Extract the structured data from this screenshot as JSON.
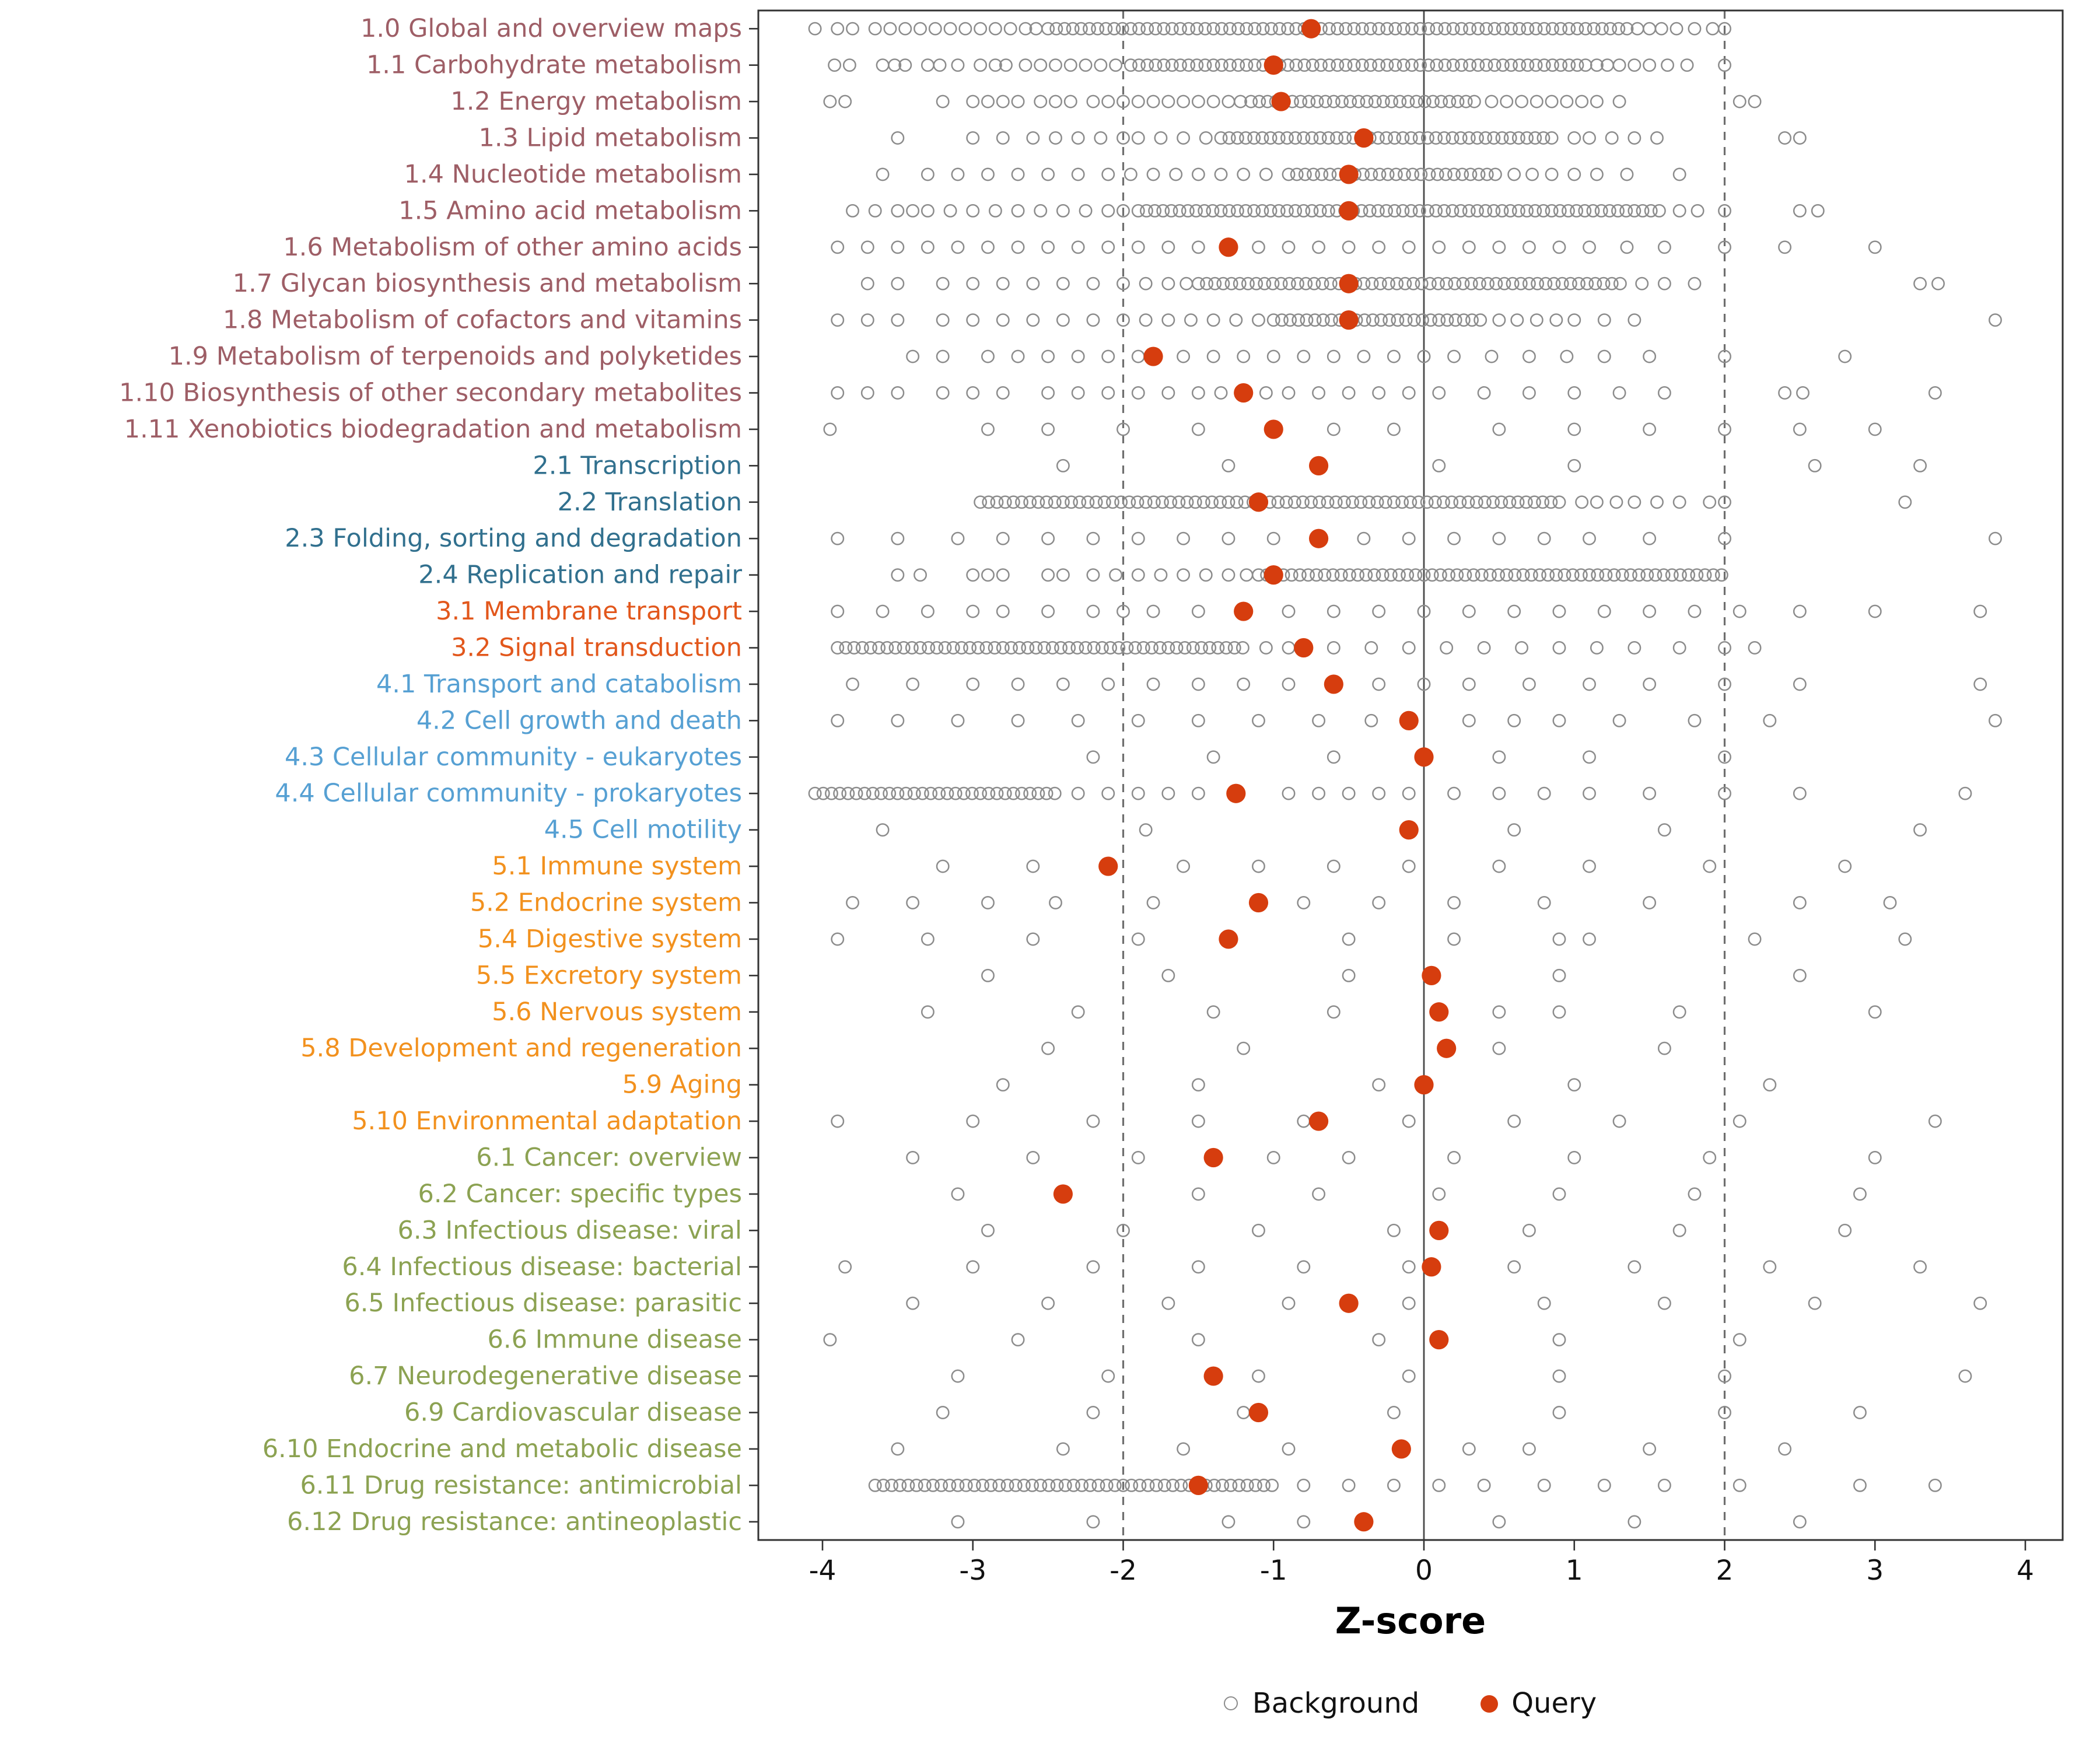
{
  "chart_data": {
    "type": "scatter",
    "title": "",
    "xlabel": "Z-score",
    "ylabel": "",
    "x_ticks": [
      -4,
      -3,
      -2,
      -1,
      0,
      1,
      2,
      3,
      4
    ],
    "xlim": [
      -4.4,
      4.25
    ],
    "grid": false,
    "legend_position": "bottom",
    "reference_lines": {
      "solid": [
        0
      ],
      "dashed": [
        -2,
        2
      ]
    },
    "legend": {
      "background_label": "Background",
      "query_label": "Query"
    },
    "colors": {
      "background_stroke": "#8c8c8c",
      "query_fill": "#d63d0e",
      "axis_text": "#111111",
      "panel_border": "#333333",
      "group_colors": {
        "1": "#9E5E66",
        "2": "#31708E",
        "3": "#E2571C",
        "4": "#56A0D3",
        "5": "#F2911E",
        "6": "#8CA252"
      }
    },
    "rows": [
      {
        "label": "1.0 Global and overview maps",
        "group": "1",
        "query": -0.75,
        "band": [
          -2.5,
          1.35
        ],
        "background": [
          -4.05,
          -3.9,
          -3.8,
          -3.65,
          -3.55,
          -3.45,
          -3.35,
          -3.25,
          -3.15,
          -3.05,
          -2.95,
          -2.85,
          -2.75,
          -2.65,
          -2.58,
          1.42,
          1.5,
          1.58,
          1.68,
          1.8,
          1.92,
          2.0
        ]
      },
      {
        "label": "1.1 Carbohydrate metabolism",
        "group": "1",
        "query": -1.0,
        "band": [
          -1.95,
          1.08
        ],
        "background": [
          -3.92,
          -3.82,
          -3.6,
          -3.52,
          -3.45,
          -3.3,
          -3.22,
          -3.1,
          -2.95,
          -2.85,
          -2.78,
          -2.65,
          -2.55,
          -2.45,
          -2.35,
          -2.25,
          -2.15,
          -2.05,
          1.15,
          1.22,
          1.3,
          1.4,
          1.5,
          1.62,
          1.75,
          2.0
        ]
      },
      {
        "label": "1.2 Energy metabolism",
        "group": "1",
        "query": -0.95,
        "band": [
          -1.15,
          0.35
        ],
        "background": [
          -3.95,
          -3.85,
          -3.2,
          -3.0,
          -2.9,
          -2.8,
          -2.7,
          -2.55,
          -2.45,
          -2.35,
          -2.2,
          -2.1,
          -2.0,
          -1.9,
          -1.8,
          -1.7,
          -1.6,
          -1.5,
          -1.4,
          -1.3,
          -1.22,
          0.45,
          0.55,
          0.65,
          0.75,
          0.85,
          0.95,
          1.05,
          1.15,
          1.3,
          2.1,
          2.2
        ]
      },
      {
        "label": "1.3 Lipid metabolism",
        "group": "1",
        "query": -0.4,
        "band": [
          -1.35,
          0.9
        ],
        "background": [
          -3.5,
          -3.0,
          -2.8,
          -2.6,
          -2.45,
          -2.3,
          -2.15,
          -2.0,
          -1.9,
          -1.75,
          -1.6,
          -1.45,
          1.0,
          1.1,
          1.25,
          1.4,
          1.55,
          2.4,
          2.5
        ]
      },
      {
        "label": "1.4 Nucleotide metabolism",
        "group": "1",
        "query": -0.5,
        "band": [
          -0.9,
          0.5
        ],
        "background": [
          -3.6,
          -3.3,
          -3.1,
          -2.9,
          -2.7,
          -2.5,
          -2.3,
          -2.1,
          -1.95,
          -1.8,
          -1.65,
          -1.5,
          -1.35,
          -1.2,
          -1.05,
          0.6,
          0.72,
          0.85,
          1.0,
          1.15,
          1.35,
          1.7
        ]
      },
      {
        "label": "1.5 Amino acid metabolism",
        "group": "1",
        "query": -0.5,
        "band": [
          -1.9,
          1.6
        ],
        "background": [
          -3.8,
          -3.65,
          -3.5,
          -3.4,
          -3.3,
          -3.15,
          -3.0,
          -2.85,
          -2.7,
          -2.55,
          -2.4,
          -2.25,
          -2.1,
          -2.0,
          1.7,
          1.82,
          2.0,
          2.5,
          2.62
        ]
      },
      {
        "label": "1.6 Metabolism of other amino acids",
        "group": "1",
        "query": -1.3,
        "band": null,
        "background": [
          -3.9,
          -3.7,
          -3.5,
          -3.3,
          -3.1,
          -2.9,
          -2.7,
          -2.5,
          -2.3,
          -2.1,
          -1.9,
          -1.7,
          -1.5,
          -1.1,
          -0.9,
          -0.7,
          -0.5,
          -0.3,
          -0.1,
          0.1,
          0.3,
          0.5,
          0.7,
          0.9,
          1.1,
          1.35,
          1.6,
          2.0,
          2.4,
          3.0
        ]
      },
      {
        "label": "1.7 Glycan biosynthesis and metabolism",
        "group": "1",
        "query": -0.5,
        "band": [
          -1.5,
          1.35
        ],
        "background": [
          -3.7,
          -3.5,
          -3.2,
          -3.0,
          -2.8,
          -2.6,
          -2.4,
          -2.2,
          -2.0,
          -1.85,
          -1.7,
          -1.58,
          1.45,
          1.6,
          1.8,
          3.3,
          3.42
        ]
      },
      {
        "label": "1.8 Metabolism of cofactors and vitamins",
        "group": "1",
        "query": -0.5,
        "band": [
          -1.0,
          0.4
        ],
        "background": [
          -3.9,
          -3.7,
          -3.5,
          -3.2,
          -3.0,
          -2.8,
          -2.6,
          -2.4,
          -2.2,
          -2.0,
          -1.85,
          -1.7,
          -1.55,
          -1.4,
          -1.25,
          -1.1,
          0.5,
          0.62,
          0.75,
          0.88,
          1.0,
          1.2,
          1.4,
          3.8
        ]
      },
      {
        "label": "1.9 Metabolism of terpenoids and polyketides",
        "group": "1",
        "query": -1.8,
        "band": null,
        "background": [
          -3.4,
          -3.2,
          -2.9,
          -2.7,
          -2.5,
          -2.3,
          -2.1,
          -1.9,
          -1.6,
          -1.4,
          -1.2,
          -1.0,
          -0.8,
          -0.6,
          -0.4,
          -0.2,
          0.0,
          0.2,
          0.45,
          0.7,
          0.95,
          1.2,
          1.5,
          2.0,
          2.8
        ]
      },
      {
        "label": "1.10 Biosynthesis of other secondary metabolites",
        "group": "1",
        "query": -1.2,
        "band": null,
        "background": [
          -3.9,
          -3.7,
          -3.5,
          -3.2,
          -3.0,
          -2.8,
          -2.5,
          -2.3,
          -2.1,
          -1.9,
          -1.7,
          -1.5,
          -1.35,
          -1.05,
          -0.9,
          -0.7,
          -0.5,
          -0.3,
          -0.1,
          0.1,
          0.4,
          0.7,
          1.0,
          1.3,
          1.6,
          2.4,
          2.52,
          3.4
        ]
      },
      {
        "label": "1.11 Xenobiotics biodegradation and metabolism",
        "group": "1",
        "query": -1.0,
        "band": null,
        "background": [
          -3.95,
          -2.9,
          -2.5,
          -2.0,
          -1.5,
          -0.6,
          -0.2,
          0.5,
          1.0,
          1.5,
          2.0,
          2.5,
          3.0
        ]
      },
      {
        "label": "2.1 Transcription",
        "group": "2",
        "query": -0.7,
        "band": null,
        "background": [
          -2.4,
          -1.3,
          0.1,
          1.0,
          2.6,
          3.3
        ]
      },
      {
        "label": "2.2 Translation",
        "group": "2",
        "query": -1.1,
        "band": [
          -2.95,
          0.9
        ],
        "background": [
          1.05,
          1.15,
          1.28,
          1.4,
          1.55,
          1.7,
          1.9,
          2.0,
          3.2
        ]
      },
      {
        "label": "2.3 Folding, sorting and degradation",
        "group": "2",
        "query": -0.7,
        "band": null,
        "background": [
          -3.9,
          -3.5,
          -3.1,
          -2.8,
          -2.5,
          -2.2,
          -1.9,
          -1.6,
          -1.3,
          -1.0,
          -0.4,
          -0.1,
          0.2,
          0.5,
          0.8,
          1.1,
          1.5,
          2.0,
          3.8
        ]
      },
      {
        "label": "2.4 Replication and repair",
        "group": "2",
        "query": -1.0,
        "band": [
          -1.1,
          2.0
        ],
        "background": [
          -3.5,
          -3.35,
          -3.0,
          -2.9,
          -2.8,
          -2.5,
          -2.4,
          -2.2,
          -2.05,
          -1.9,
          -1.75,
          -1.6,
          -1.45,
          -1.3,
          -1.18
        ]
      },
      {
        "label": "3.1 Membrane transport",
        "group": "3",
        "query": -1.2,
        "band": null,
        "background": [
          -3.9,
          -3.6,
          -3.3,
          -3.0,
          -2.8,
          -2.5,
          -2.2,
          -2.0,
          -1.8,
          -1.5,
          -0.9,
          -0.6,
          -0.3,
          0.0,
          0.3,
          0.6,
          0.9,
          1.2,
          1.5,
          1.8,
          2.1,
          2.5,
          3.0,
          3.7
        ]
      },
      {
        "label": "3.2 Signal transduction",
        "group": "3",
        "query": -0.8,
        "band": [
          -3.9,
          -1.2
        ],
        "background": [
          -1.05,
          -0.9,
          -0.6,
          -0.35,
          -0.1,
          0.15,
          0.4,
          0.65,
          0.9,
          1.15,
          1.4,
          1.7,
          2.0,
          2.2
        ]
      },
      {
        "label": "4.1 Transport and catabolism",
        "group": "4",
        "query": -0.6,
        "band": null,
        "background": [
          -3.8,
          -3.4,
          -3.0,
          -2.7,
          -2.4,
          -2.1,
          -1.8,
          -1.5,
          -1.2,
          -0.9,
          -0.3,
          0.0,
          0.3,
          0.7,
          1.1,
          1.5,
          2.0,
          2.5,
          3.7
        ]
      },
      {
        "label": "4.2 Cell growth and death",
        "group": "4",
        "query": -0.1,
        "band": null,
        "background": [
          -3.9,
          -3.5,
          -3.1,
          -2.7,
          -2.3,
          -1.9,
          -1.5,
          -1.1,
          -0.7,
          -0.35,
          0.3,
          0.6,
          0.9,
          1.3,
          1.8,
          2.3,
          3.8
        ]
      },
      {
        "label": "4.3 Cellular community - eukaryotes",
        "group": "4",
        "query": 0.0,
        "band": null,
        "background": [
          -2.2,
          -1.4,
          -0.6,
          0.5,
          1.1,
          2.0
        ]
      },
      {
        "label": "4.4 Cellular community - prokaryotes",
        "group": "4",
        "query": -1.25,
        "band": [
          -4.05,
          -2.45
        ],
        "background": [
          -2.3,
          -2.1,
          -1.9,
          -1.7,
          -1.5,
          -0.9,
          -0.7,
          -0.5,
          -0.3,
          -0.1,
          0.2,
          0.5,
          0.8,
          1.1,
          1.5,
          2.0,
          2.5,
          3.6
        ]
      },
      {
        "label": "4.5 Cell motility",
        "group": "4",
        "query": -0.1,
        "band": null,
        "background": [
          -3.6,
          -1.85,
          0.6,
          1.6,
          3.3
        ]
      },
      {
        "label": "5.1 Immune system",
        "group": "5",
        "query": -2.1,
        "band": null,
        "background": [
          -3.2,
          -2.6,
          -1.6,
          -1.1,
          -0.6,
          -0.1,
          0.5,
          1.1,
          1.9,
          2.8
        ]
      },
      {
        "label": "5.2 Endocrine system",
        "group": "5",
        "query": -1.1,
        "band": null,
        "background": [
          -3.8,
          -3.4,
          -2.9,
          -2.45,
          -1.8,
          -0.8,
          -0.3,
          0.2,
          0.8,
          1.5,
          2.5,
          3.1
        ]
      },
      {
        "label": "5.4 Digestive system",
        "group": "5",
        "query": -1.3,
        "band": null,
        "background": [
          -3.9,
          -3.3,
          -2.6,
          -1.9,
          -0.5,
          0.2,
          0.9,
          1.1,
          2.2,
          3.2
        ]
      },
      {
        "label": "5.5 Excretory system",
        "group": "5",
        "query": 0.05,
        "band": null,
        "background": [
          -2.9,
          -1.7,
          -0.5,
          0.9,
          2.5
        ]
      },
      {
        "label": "5.6 Nervous system",
        "group": "5",
        "query": 0.1,
        "band": null,
        "background": [
          -3.3,
          -2.3,
          -1.4,
          -0.6,
          0.5,
          0.9,
          1.7,
          3.0
        ]
      },
      {
        "label": "5.8 Development and regeneration",
        "group": "5",
        "query": 0.15,
        "band": null,
        "background": [
          -2.5,
          -1.2,
          0.5,
          1.6
        ]
      },
      {
        "label": "5.9 Aging",
        "group": "5",
        "query": 0.0,
        "band": null,
        "background": [
          -2.8,
          -1.5,
          -0.3,
          1.0,
          2.3
        ]
      },
      {
        "label": "5.10 Environmental adaptation",
        "group": "5",
        "query": -0.7,
        "band": null,
        "background": [
          -3.9,
          -3.0,
          -2.2,
          -1.5,
          -0.8,
          -0.1,
          0.6,
          1.3,
          2.1,
          3.4
        ]
      },
      {
        "label": "6.1 Cancer: overview",
        "group": "6",
        "query": -1.4,
        "band": null,
        "background": [
          -3.4,
          -2.6,
          -1.9,
          -1.0,
          -0.5,
          0.2,
          1.0,
          1.9,
          3.0
        ]
      },
      {
        "label": "6.2 Cancer: specific types",
        "group": "6",
        "query": -2.4,
        "band": null,
        "background": [
          -3.1,
          -1.5,
          -0.7,
          0.1,
          0.9,
          1.8,
          2.9
        ]
      },
      {
        "label": "6.3 Infectious disease: viral",
        "group": "6",
        "query": 0.1,
        "band": null,
        "background": [
          -2.9,
          -2.0,
          -1.1,
          -0.2,
          0.7,
          1.7,
          2.8
        ]
      },
      {
        "label": "6.4 Infectious disease: bacterial",
        "group": "6",
        "query": 0.05,
        "band": null,
        "background": [
          -3.85,
          -3.0,
          -2.2,
          -1.5,
          -0.8,
          -0.1,
          0.6,
          1.4,
          2.3,
          3.3
        ]
      },
      {
        "label": "6.5 Infectious disease: parasitic",
        "group": "6",
        "query": -0.5,
        "band": null,
        "background": [
          -3.4,
          -2.5,
          -1.7,
          -0.9,
          -0.1,
          0.8,
          1.6,
          2.6,
          3.7
        ]
      },
      {
        "label": "6.6 Immune disease",
        "group": "6",
        "query": 0.1,
        "band": null,
        "background": [
          -3.95,
          -2.7,
          -1.5,
          -0.3,
          0.9,
          2.1
        ]
      },
      {
        "label": "6.7 Neurodegenerative disease",
        "group": "6",
        "query": -1.4,
        "band": null,
        "background": [
          -3.1,
          -2.1,
          -1.1,
          -0.1,
          0.9,
          2.0,
          3.6
        ]
      },
      {
        "label": "6.9 Cardiovascular disease",
        "group": "6",
        "query": -1.1,
        "band": null,
        "background": [
          -3.2,
          -2.2,
          -1.2,
          -0.2,
          0.9,
          2.0,
          2.9
        ]
      },
      {
        "label": "6.10 Endocrine and metabolic disease",
        "group": "6",
        "query": -0.15,
        "band": null,
        "background": [
          -3.5,
          -2.4,
          -1.6,
          -0.9,
          0.3,
          0.7,
          1.5,
          2.4
        ]
      },
      {
        "label": "6.11 Drug resistance: antimicrobial",
        "group": "6",
        "query": -1.5,
        "band": [
          -3.65,
          -1.0
        ],
        "background": [
          -0.8,
          -0.5,
          -0.2,
          0.1,
          0.4,
          0.8,
          1.2,
          1.6,
          2.1,
          2.9,
          3.4
        ]
      },
      {
        "label": "6.12 Drug resistance: antineoplastic",
        "group": "6",
        "query": -0.4,
        "band": null,
        "background": [
          -3.1,
          -2.2,
          -1.3,
          -0.8,
          0.5,
          1.4,
          2.5
        ]
      }
    ]
  }
}
